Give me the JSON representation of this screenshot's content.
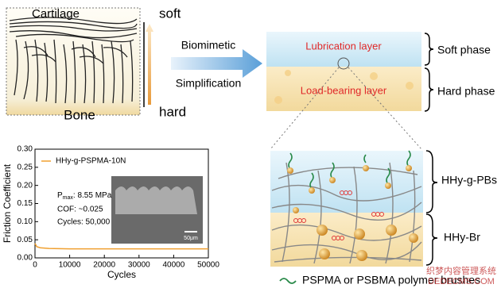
{
  "diagram": {
    "cartilage_label": "Cartilage",
    "bone_label": "Bone",
    "soft_label": "soft",
    "hard_label": "hard",
    "arrow_top": "Biomimetic",
    "arrow_bottom": "Simplification",
    "lubrication_layer": "Lubrication layer",
    "load_bearing_layer": "Load-bearing layer",
    "soft_phase": "Soft phase",
    "hard_phase": "Hard phase",
    "upper_region": "HHy-g-PBs",
    "lower_region": "HHy-Br",
    "legend": "PSPMA or PSBMA polymer brushes",
    "watermark_top": "织梦内容管理系统",
    "watermark_bottom": "DEDECMS.COM"
  },
  "chart_data": {
    "type": "line",
    "x": [
      0,
      500,
      1500,
      4000,
      10000,
      20000,
      30000,
      40000,
      50000
    ],
    "series": [
      {
        "name": "HHy-g-PSPMA-10N",
        "color": "#f0a030",
        "values": [
          0.04,
          0.031,
          0.028,
          0.026,
          0.025,
          0.025,
          0.025,
          0.025,
          0.025
        ]
      }
    ],
    "xlabel": "Cycles",
    "ylabel": "Friction Coefficient",
    "xlim": [
      0,
      50000
    ],
    "xticks": [
      0,
      10000,
      20000,
      30000,
      40000,
      50000
    ],
    "ylim": [
      0,
      0.3
    ],
    "yticks": [
      {
        "value": 0,
        "label": "0.00"
      },
      {
        "value": 0.05,
        "label": "0.05"
      },
      {
        "value": 0.1,
        "label": "0.10"
      },
      {
        "value": 0.15,
        "label": "0.15"
      },
      {
        "value": 0.2,
        "label": "0.20"
      },
      {
        "value": 0.25,
        "label": "0.25"
      },
      {
        "value": 0.3,
        "label": "0.30"
      }
    ],
    "pmax": {
      "symbol": "P",
      "subscript": "max",
      "text": ": 8.55 MPa"
    },
    "annotations": [
      "COF: ~0.025",
      "Cycles: 50,000"
    ],
    "inset_scale": "50μm"
  }
}
